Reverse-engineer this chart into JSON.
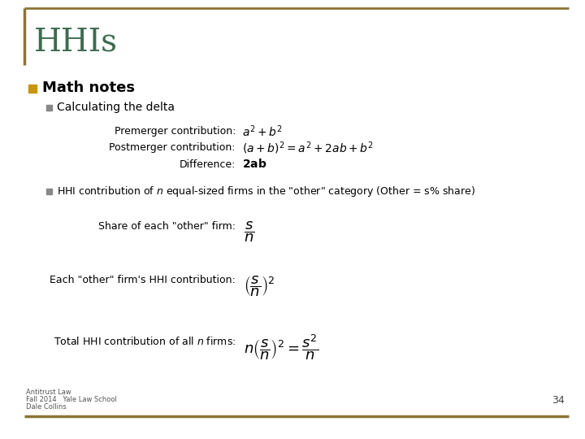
{
  "title": "HHIs",
  "title_color": "#3D6B4F",
  "bg_color": "#FFFFFF",
  "border_color": "#8B7536",
  "bullet1": "Math notes",
  "bullet1_marker_color": "#C8960C",
  "sub_bullet_marker_color": "#888888",
  "sub_bullet1": "Calculating the delta",
  "premerger_label": "Premerger contribution:",
  "premerger_formula": "$a^2 + b^2$",
  "postmerger_label": "Postmerger contribution:",
  "postmerger_formula": "$(a + b)^2 = a^2 + 2ab + b^2$",
  "difference_label": "Difference:",
  "difference_formula": "$\\mathbf{2ab}$",
  "sub_bullet2_plain": "HHI contribution of ",
  "sub_bullet2_italic": "n",
  "sub_bullet2_rest": " equal-sized firms in the \"other\" category (Other = s% share)",
  "share_label": "Share of each \"other\" firm:",
  "share_formula": "$\\dfrac{s}{n}$",
  "each_label": "Each \"other\" firm's HHI contribution:",
  "each_formula": "$\\left(\\dfrac{s}{n}\\right)^2$",
  "total_label": "Total HHI contribution of all ",
  "total_label_italic": "n",
  "total_label_rest": " firms:",
  "total_formula": "$n\\left(\\dfrac{s}{n}\\right)^2 = \\dfrac{s^2}{n}$",
  "footer_line1": "Antitrust Law",
  "footer_line2": "Fall 2014   Yale Law School",
  "footer_line3": "Dale Collins",
  "page_number": "34"
}
